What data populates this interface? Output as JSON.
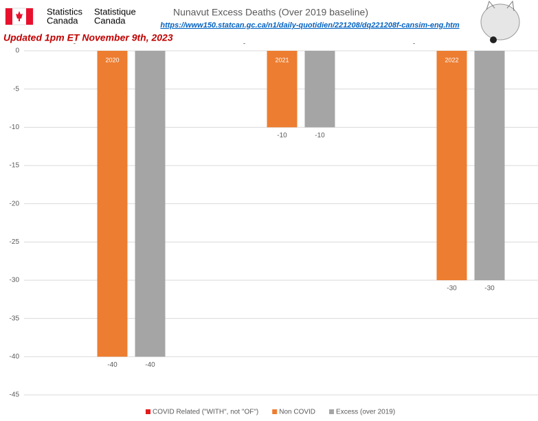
{
  "header": {
    "logo_en": [
      "Statistics",
      "Canada"
    ],
    "logo_fr": [
      "Statistique",
      "Canada"
    ],
    "url": "https://www150.statcan.gc.ca/n1/daily-quotidien/221208/dq221208f-cansim-eng.htm",
    "updated": "Updated 1pm ET November 9th, 2023"
  },
  "chart_data": {
    "type": "bar",
    "title": "Nunavut Excess Deaths (Over 2019 baseline)",
    "categories": [
      "2020",
      "2021",
      "2022"
    ],
    "series": [
      {
        "name": "COVID Related (\"WITH\", not \"OF\")",
        "color": "#e31a1c",
        "values": [
          0,
          0,
          0
        ],
        "value_labels": [
          "-",
          "-",
          "-"
        ]
      },
      {
        "name": "Non COVID",
        "color": "#ed7d31",
        "values": [
          -40,
          -10,
          -30
        ]
      },
      {
        "name": "Excess (over 2019)",
        "color": "#a5a5a5",
        "values": [
          -40,
          -10,
          -30
        ]
      }
    ],
    "ylim": [
      -45,
      0
    ],
    "yticks": [
      0,
      -5,
      -10,
      -15,
      -20,
      -25,
      -30,
      -35,
      -40,
      -45
    ],
    "grid": true,
    "legend": "bottom"
  }
}
